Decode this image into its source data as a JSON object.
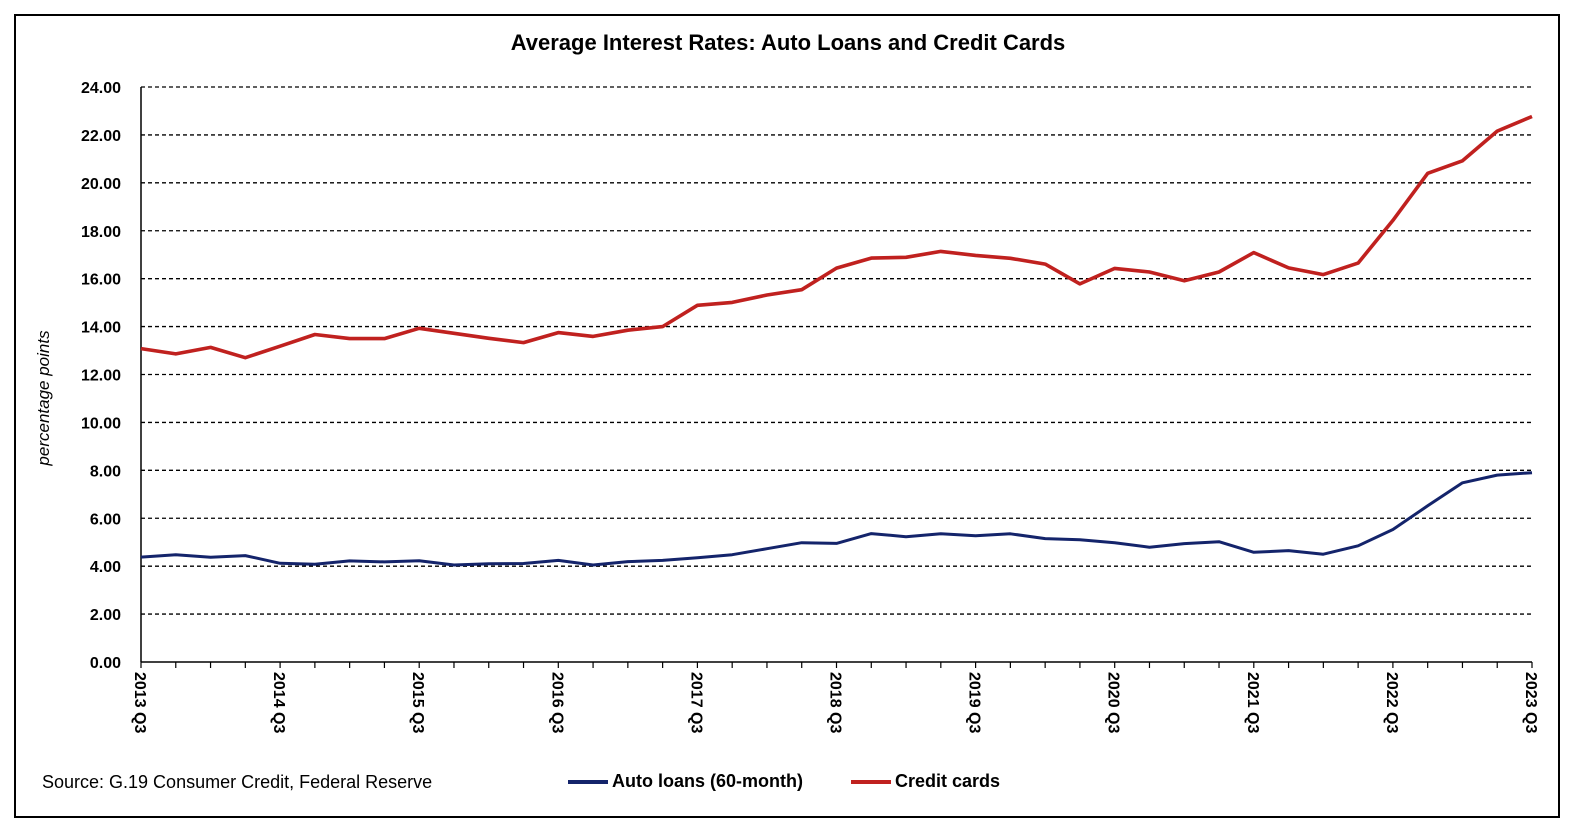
{
  "chart_data": {
    "type": "line",
    "title": "Average Interest Rates: Auto Loans and Credit Cards",
    "ylabel": "percentage points",
    "xlabel": "",
    "ylim": [
      0,
      24
    ],
    "yticks": [
      "0.00",
      "2.00",
      "4.00",
      "6.00",
      "8.00",
      "10.00",
      "12.00",
      "14.00",
      "16.00",
      "18.00",
      "20.00",
      "22.00",
      "24.00"
    ],
    "xtick_labels": [
      "2013 Q3",
      "2014 Q3",
      "2015 Q3",
      "2016 Q3",
      "2017 Q3",
      "2018 Q3",
      "2019 Q3",
      "2020 Q3",
      "2021 Q3",
      "2022 Q3",
      "2023 Q3"
    ],
    "x": [
      "2013 Q3",
      "2013 Q4",
      "2014 Q1",
      "2014 Q2",
      "2014 Q3",
      "2014 Q4",
      "2015 Q1",
      "2015 Q2",
      "2015 Q3",
      "2015 Q4",
      "2016 Q1",
      "2016 Q2",
      "2016 Q3",
      "2016 Q4",
      "2017 Q1",
      "2017 Q2",
      "2017 Q3",
      "2017 Q4",
      "2018 Q1",
      "2018 Q2",
      "2018 Q3",
      "2018 Q4",
      "2019 Q1",
      "2019 Q2",
      "2019 Q3",
      "2019 Q4",
      "2020 Q1",
      "2020 Q2",
      "2020 Q3",
      "2020 Q4",
      "2021 Q1",
      "2021 Q2",
      "2021 Q3",
      "2021 Q4",
      "2022 Q1",
      "2022 Q2",
      "2022 Q3",
      "2022 Q4",
      "2023 Q1",
      "2023 Q2",
      "2023 Q3"
    ],
    "grid": "horizontal dashed",
    "legend_position": "bottom",
    "series": [
      {
        "name": "Auto loans (60-month)",
        "color": "#14246b",
        "values": [
          4.38,
          4.48,
          4.37,
          4.44,
          4.12,
          4.08,
          4.22,
          4.18,
          4.23,
          4.05,
          4.1,
          4.11,
          4.24,
          4.05,
          4.19,
          4.24,
          4.35,
          4.48,
          4.73,
          4.98,
          4.95,
          5.36,
          5.23,
          5.35,
          5.27,
          5.35,
          5.15,
          5.1,
          4.98,
          4.79,
          4.94,
          5.02,
          4.58,
          4.65,
          4.5,
          4.85,
          5.53,
          6.52,
          7.48,
          7.8,
          7.9
        ]
      },
      {
        "name": "Credit cards",
        "color": "#c0211f",
        "values": [
          13.08,
          12.86,
          13.13,
          12.7,
          13.18,
          13.67,
          13.5,
          13.5,
          13.93,
          13.72,
          13.51,
          13.33,
          13.75,
          13.59,
          13.85,
          14.0,
          14.89,
          15.01,
          15.32,
          15.54,
          16.44,
          16.86,
          16.89,
          17.14,
          16.97,
          16.85,
          16.61,
          15.78,
          16.43,
          16.28,
          15.91,
          16.28,
          17.09,
          16.45,
          16.17,
          16.65,
          18.43,
          20.4,
          20.92,
          22.16,
          22.77
        ]
      }
    ]
  },
  "source": "Source: G.19 Consumer Credit, Federal Reserve"
}
